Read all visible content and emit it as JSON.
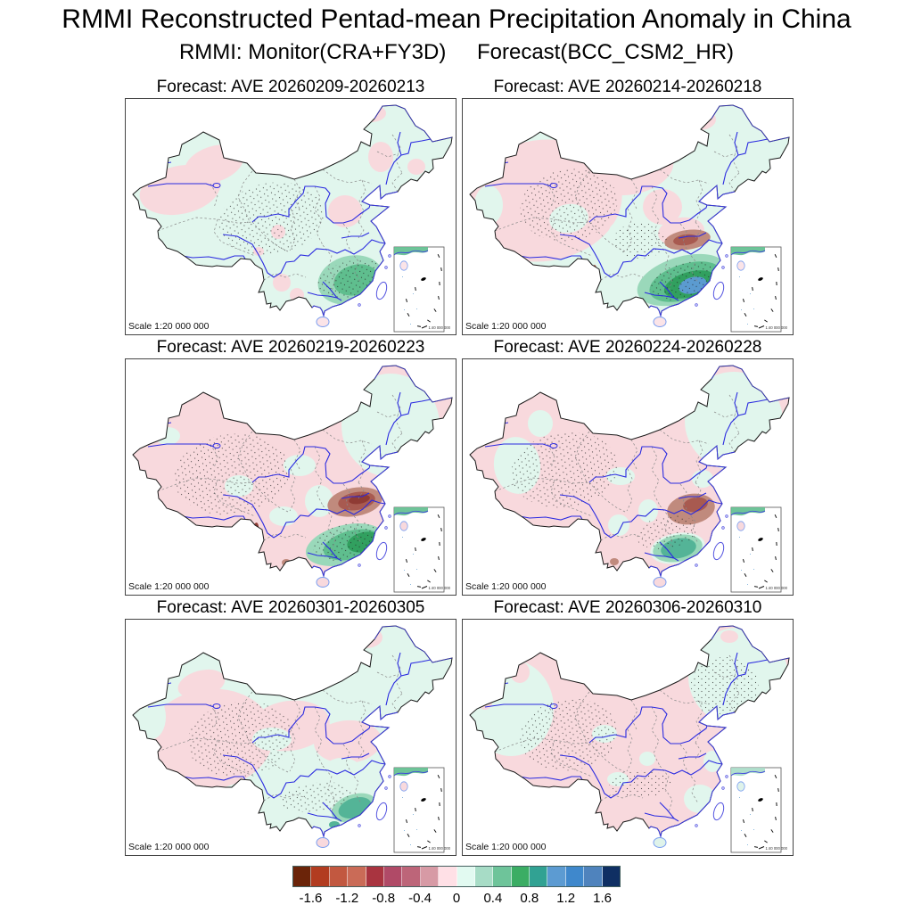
{
  "title": "RMMI Reconstructed Pentad-mean Precipitation Anomaly in China",
  "subtitle": {
    "monitor": "RMMI: Monitor(CRA+FY3D)",
    "forecast": "Forecast(BCC_CSM2_HR)"
  },
  "scale_label": "Scale 1:20 000 000",
  "inset_scale_label": "1:40 000 000",
  "map_colors": {
    "weak_negative_pink": "#f8d9dd",
    "weak_positive_mint": "#e1f6ed",
    "coastline_blue": "#3a3ae0",
    "river_blue": "#2a2ae0",
    "border_black": "#1a1a1a",
    "province_gray": "#8a8a8a"
  },
  "chart_data": {
    "type": "heatmap",
    "title": "RMMI Reconstructed Pentad-mean Precipitation Anomaly in China",
    "subtitle": "RMMI: Monitor(CRA+FY3D)  Forecast(BCC_CSM2_HR)",
    "variable": "Pentad-mean precipitation anomaly",
    "region": "China",
    "colorbar": {
      "orientation": "horizontal",
      "tick_labels": [
        "-1.6",
        "-1.2",
        "-0.8",
        "-0.4",
        "0",
        "0.4",
        "0.8",
        "1.2",
        "1.6"
      ],
      "level_step": 0.2,
      "levels_range": [
        -1.8,
        1.8
      ],
      "colors": [
        "#6b2409",
        "#b23c20",
        "#c25840",
        "#ca6b57",
        "#a93440",
        "#b04a67",
        "#bd6579",
        "#d79aa5",
        "#ffe0e6",
        "#e2faf1",
        "#a7dcc6",
        "#6ec49a",
        "#3bad64",
        "#31a293",
        "#5c9bd2",
        "#3f88cc",
        "#4f83bd",
        "#0f2f63"
      ]
    },
    "panels": [
      {
        "title": "Forecast: AVE 20260209-20260213",
        "start": "20260209",
        "end": "20260213",
        "summary": "Positive anomaly (green) over southeast China; weak negative over west Xinjiang, north-central and northeast patches.",
        "base": "#e1f6ed",
        "hainan": "#fbe4e8",
        "inset_patch": "#5fbe8e",
        "regions": [
          [
            "#f8d9dd",
            62,
            103,
            46,
            27,
            -12
          ],
          [
            "#f8d9dd",
            100,
            74,
            34,
            20,
            -18
          ],
          [
            "#f8d9dd",
            247,
            127,
            19,
            18,
            0
          ],
          [
            "#f8d9dd",
            287,
            66,
            14,
            17,
            0
          ],
          [
            "#f8d9dd",
            276,
            17,
            17,
            10,
            0
          ],
          [
            "#f8d9dd",
            327,
            77,
            10,
            9,
            0
          ],
          [
            "#f8d9dd",
            172,
            150,
            8,
            8,
            0
          ],
          [
            "#f8d9dd",
            176,
            207,
            10,
            10,
            0
          ],
          [
            "#f8d9dd",
            193,
            221,
            8,
            8,
            0
          ],
          [
            "#f8d9dd",
            150,
            172,
            6,
            5,
            0
          ],
          [
            "#9ad8ba",
            253,
            204,
            37,
            27,
            -15
          ],
          [
            "#5fbe8e",
            259,
            204,
            25,
            17,
            -15
          ]
        ],
        "stipple": [
          [
            165,
            135,
            60,
            40,
            -10
          ],
          [
            253,
            203,
            38,
            20,
            -15
          ]
        ]
      },
      {
        "title": "Forecast: AVE 20260214-20260218",
        "start": "20260214",
        "end": "20260218",
        "summary": "Strong positive band (green/blue core) across south China; negative core (dark red) over central-east; pink over much of the west.",
        "base": "#e1f6ed",
        "hainan": "#fbe4e8",
        "inset_patch": "#5fbe8e",
        "regions": [
          [
            "#f8d9dd",
            90,
            115,
            90,
            68,
            -8
          ],
          [
            "#f8d9dd",
            190,
            80,
            48,
            28,
            -12
          ],
          [
            "#f8d9dd",
            225,
            122,
            22,
            20,
            0
          ],
          [
            "#f8d9dd",
            266,
            24,
            19,
            12,
            0
          ],
          [
            "#e1f6ed",
            30,
            120,
            16,
            22,
            0
          ],
          [
            "#e1f6ed",
            120,
            135,
            22,
            16,
            -10
          ],
          [
            "#e1f6ed",
            185,
            150,
            20,
            14,
            0
          ],
          [
            "#f8d9dd",
            246,
            150,
            26,
            16,
            -8
          ],
          [
            "#c08a7d",
            253,
            159,
            26,
            11,
            -8
          ],
          [
            "#a85a50",
            251,
            159,
            14,
            6,
            -8
          ],
          [
            "#9ad8ba",
            247,
            204,
            52,
            26,
            -17
          ],
          [
            "#5fbe8e",
            251,
            206,
            42,
            20,
            -17
          ],
          [
            "#31a05f",
            256,
            209,
            30,
            14,
            -16
          ],
          [
            "#5b9bd0",
            259,
            210,
            16,
            9,
            -15
          ],
          [
            "#a85a50",
            147,
            199,
            4,
            12,
            10
          ]
        ],
        "stipple": [
          [
            120,
            120,
            55,
            40,
            -10
          ],
          [
            250,
            205,
            40,
            20,
            -15
          ],
          [
            200,
            160,
            30,
            20,
            0
          ]
        ]
      },
      {
        "title": "Forecast: AVE 20260219-20260223",
        "start": "20260219",
        "end": "20260223",
        "summary": "Negative core (dark brown-red) over central-east China; positive (green) over southeast coast; pink background over west; mint over northeast.",
        "base": "#f8d9dd",
        "hainan": "#f8d9dd",
        "inset_patch": "#5fbe8e",
        "regions": [
          [
            "#e1f6ed",
            298,
            75,
            55,
            58,
            0
          ],
          [
            "#e1f6ed",
            128,
            143,
            16,
            12,
            0
          ],
          [
            "#e1f6ed",
            178,
            177,
            16,
            11,
            0
          ],
          [
            "#e1f6ed",
            218,
            160,
            16,
            18,
            0
          ],
          [
            "#e1f6ed",
            48,
            87,
            14,
            10,
            0
          ],
          [
            "#e1f6ed",
            196,
            120,
            18,
            12,
            0
          ],
          [
            "#c08a7d",
            258,
            161,
            31,
            16,
            -10
          ],
          [
            "#a85a50",
            260,
            160,
            21,
            10,
            -10
          ],
          [
            "#8f3b34",
            263,
            158,
            12,
            5,
            -10
          ],
          [
            "#9ad8ba",
            247,
            209,
            45,
            22,
            -14
          ],
          [
            "#5fbe8e",
            255,
            209,
            33,
            16,
            -14
          ],
          [
            "#31a05f",
            268,
            206,
            19,
            11,
            -14
          ],
          [
            "#8f3b34",
            146,
            197,
            4,
            13,
            8
          ],
          [
            "#a85a50",
            137,
            184,
            5,
            4,
            0
          ],
          [
            "#c08a7d",
            181,
            229,
            5,
            4,
            0
          ]
        ],
        "stipple": [
          [
            120,
            130,
            65,
            45,
            -8
          ],
          [
            250,
            205,
            40,
            20,
            -15
          ]
        ]
      },
      {
        "title": "Forecast: AVE 20260224-20260228",
        "start": "20260224",
        "end": "20260228",
        "summary": "Negative core over central-east; teal-green positive patch over south coast; pink dominant elsewhere, mint over northeast and west Xinjiang.",
        "base": "#f8d9dd",
        "hainan": "#f8d9dd",
        "inset_patch": "#5fbe8e",
        "regions": [
          [
            "#e1f6ed",
            305,
            70,
            55,
            55,
            0
          ],
          [
            "#e1f6ed",
            62,
            120,
            26,
            32,
            -8
          ],
          [
            "#e1f6ed",
            88,
            73,
            14,
            15,
            0
          ],
          [
            "#e1f6ed",
            178,
            132,
            16,
            10,
            0
          ],
          [
            "#e1f6ed",
            176,
            187,
            12,
            12,
            0
          ],
          [
            "#e1f6ed",
            209,
            171,
            11,
            13,
            0
          ],
          [
            "#e1f6ed",
            270,
            135,
            12,
            10,
            0
          ],
          [
            "#e1f6ed",
            242,
            213,
            31,
            17,
            -10
          ],
          [
            "#c08a7d",
            257,
            169,
            27,
            17,
            -10
          ],
          [
            "#a85a50",
            262,
            164,
            14,
            8,
            -10
          ],
          [
            "#9ad8ba",
            242,
            213,
            28,
            15,
            -10
          ],
          [
            "#54b497",
            243,
            213,
            20,
            11,
            -10
          ],
          [
            "#c08a7d",
            171,
            228,
            5,
            4,
            0
          ]
        ],
        "stipple": [
          [
            115,
            125,
            60,
            42,
            -8
          ],
          [
            230,
            195,
            35,
            18,
            -10
          ]
        ]
      },
      {
        "title": "Forecast: AVE 20260301-20260305",
        "start": "20260301",
        "end": "20260305",
        "summary": "Mixed weak anomalies: pink over west-central and east, mint over northeast and central patches; small teal-green patch near southeast coast.",
        "base": "#e1f6ed",
        "hainan": "#f8d9dd",
        "inset_patch": "#5fbe8e",
        "regions": [
          [
            "#f8d9dd",
            95,
            135,
            72,
            56,
            -8
          ],
          [
            "#f8d9dd",
            185,
            120,
            45,
            28,
            -8
          ],
          [
            "#f8d9dd",
            250,
            138,
            38,
            24,
            -4
          ],
          [
            "#f8d9dd",
            270,
            21,
            19,
            12,
            0
          ],
          [
            "#f8d9dd",
            86,
            73,
            27,
            15,
            -15
          ],
          [
            "#e1f6ed",
            30,
            110,
            16,
            25,
            0
          ],
          [
            "#e1f6ed",
            165,
            135,
            22,
            13,
            0
          ],
          [
            "#e1f6ed",
            193,
            167,
            20,
            17,
            0
          ],
          [
            "#e1f6ed",
            244,
            168,
            20,
            12,
            0
          ],
          [
            "#9ad8ba",
            257,
            212,
            26,
            15,
            -18
          ],
          [
            "#54b497",
            258,
            212,
            19,
            11,
            -18
          ],
          [
            "#54b497",
            235,
            231,
            6,
            4,
            0
          ]
        ],
        "stipple": [
          [
            130,
            135,
            60,
            42,
            -8
          ],
          [
            215,
            200,
            40,
            16,
            -8
          ]
        ]
      },
      {
        "title": "Forecast: AVE 20260306-20260310",
        "start": "20260306",
        "end": "20260310",
        "summary": "Weak negative (pink) over central and southern China; weak positive (mint) over west Xinjiang and the northeast; no strong cores.",
        "base": "#f8d9dd",
        "hainan": "#dff3ea",
        "inset_patch": "#a7dcc6",
        "regions": [
          [
            "#e1f6ed",
            55,
            100,
            48,
            54,
            0
          ],
          [
            "#e1f6ed",
            310,
            65,
            56,
            55,
            0
          ],
          [
            "#f8d9dd",
            65,
            60,
            11,
            12,
            0
          ],
          [
            "#f8d9dd",
            26,
            94,
            8,
            8,
            0
          ],
          [
            "#f8d9dd",
            300,
            20,
            10,
            7,
            0
          ],
          [
            "#e1f6ed",
            160,
            129,
            14,
            10,
            0
          ],
          [
            "#e1f6ed",
            175,
            180,
            12,
            8,
            0
          ],
          [
            "#e1f6ed",
            208,
            157,
            9,
            8,
            0
          ],
          [
            "#e1f6ed",
            267,
            202,
            18,
            16,
            0
          ],
          [
            "#e1f6ed",
            281,
            160,
            10,
            12,
            0
          ]
        ],
        "stipple": [
          [
            120,
            130,
            55,
            40,
            -8
          ],
          [
            295,
            75,
            38,
            32,
            0
          ],
          [
            200,
            185,
            35,
            15,
            0
          ]
        ]
      }
    ]
  }
}
